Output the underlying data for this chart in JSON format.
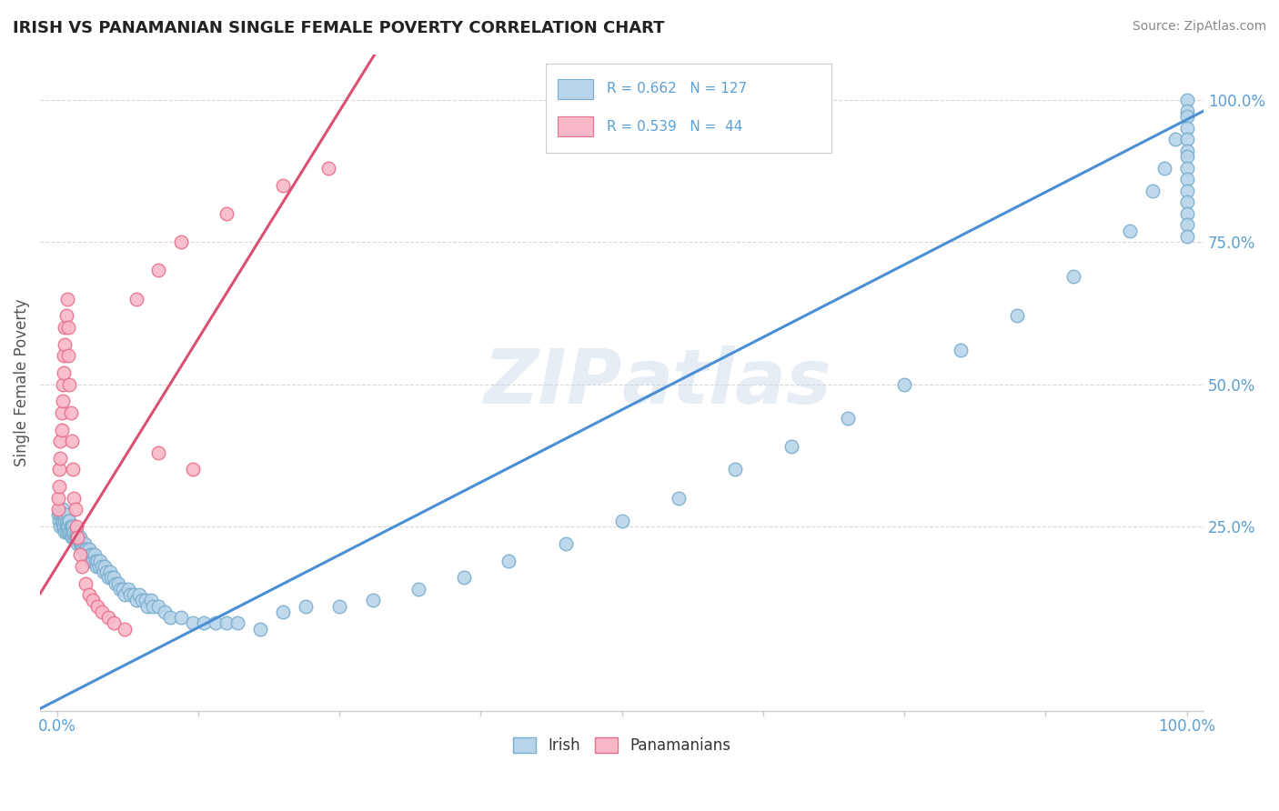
{
  "title": "IRISH VS PANAMANIAN SINGLE FEMALE POVERTY CORRELATION CHART",
  "source": "Source: ZipAtlas.com",
  "ylabel": "Single Female Poverty",
  "watermark_top": "ZIP",
  "watermark_bot": "atlas",
  "legend_irish_R": "R = 0.662",
  "legend_irish_N": "N = 127",
  "legend_pan_R": "R = 0.539",
  "legend_pan_N": "N =  44",
  "irish_color": "#b8d4ea",
  "irish_edge_color": "#7aaece",
  "pan_color": "#f9b8c8",
  "pan_edge_color": "#e8708a",
  "irish_line_color": "#4a8fd4",
  "pan_line_color": "#d95070",
  "background_color": "#ffffff",
  "grid_color": "#d8d8d8",
  "axis_label_color": "#5a9fd4",
  "title_color": "#222222",
  "source_color": "#888888",
  "ylabel_color": "#555555",
  "irish_slope": 1.02,
  "irish_intercept": -0.055,
  "pan_slope": 3.2,
  "pan_intercept": 0.18,
  "pan_line_xmax": 0.32,
  "xlim_min": -0.015,
  "xlim_max": 1.015,
  "ylim_min": -0.075,
  "ylim_max": 1.08,
  "irish_x": [
    0.001,
    0.002,
    0.003,
    0.003,
    0.004,
    0.004,
    0.005,
    0.005,
    0.005,
    0.006,
    0.006,
    0.007,
    0.007,
    0.007,
    0.008,
    0.008,
    0.008,
    0.009,
    0.009,
    0.01,
    0.01,
    0.01,
    0.011,
    0.011,
    0.012,
    0.012,
    0.013,
    0.013,
    0.014,
    0.014,
    0.015,
    0.015,
    0.016,
    0.017,
    0.017,
    0.018,
    0.019,
    0.02,
    0.02,
    0.021,
    0.022,
    0.022,
    0.023,
    0.024,
    0.025,
    0.025,
    0.026,
    0.027,
    0.028,
    0.029,
    0.03,
    0.031,
    0.032,
    0.033,
    0.034,
    0.035,
    0.036,
    0.037,
    0.038,
    0.04,
    0.041,
    0.042,
    0.044,
    0.045,
    0.047,
    0.048,
    0.05,
    0.052,
    0.054,
    0.056,
    0.058,
    0.06,
    0.063,
    0.065,
    0.068,
    0.07,
    0.073,
    0.075,
    0.078,
    0.08,
    0.083,
    0.085,
    0.09,
    0.095,
    0.1,
    0.11,
    0.12,
    0.13,
    0.14,
    0.15,
    0.16,
    0.18,
    0.2,
    0.22,
    0.25,
    0.28,
    0.32,
    0.36,
    0.4,
    0.45,
    0.5,
    0.55,
    0.6,
    0.65,
    0.7,
    0.75,
    0.8,
    0.85,
    0.9,
    0.95,
    0.97,
    0.98,
    0.99,
    1.0,
    1.0,
    1.0,
    1.0,
    1.0,
    1.0,
    1.0,
    1.0,
    1.0,
    1.0,
    1.0,
    1.0,
    1.0,
    1.0
  ],
  "irish_y": [
    0.27,
    0.26,
    0.27,
    0.25,
    0.26,
    0.27,
    0.25,
    0.26,
    0.28,
    0.25,
    0.27,
    0.24,
    0.26,
    0.27,
    0.25,
    0.24,
    0.26,
    0.25,
    0.27,
    0.24,
    0.26,
    0.25,
    0.24,
    0.26,
    0.25,
    0.24,
    0.25,
    0.23,
    0.24,
    0.25,
    0.23,
    0.24,
    0.23,
    0.24,
    0.23,
    0.22,
    0.23,
    0.22,
    0.23,
    0.22,
    0.21,
    0.22,
    0.21,
    0.22,
    0.21,
    0.2,
    0.21,
    0.2,
    0.21,
    0.2,
    0.19,
    0.2,
    0.19,
    0.2,
    0.19,
    0.18,
    0.19,
    0.18,
    0.19,
    0.18,
    0.17,
    0.18,
    0.17,
    0.16,
    0.17,
    0.16,
    0.16,
    0.15,
    0.15,
    0.14,
    0.14,
    0.13,
    0.14,
    0.13,
    0.13,
    0.12,
    0.13,
    0.12,
    0.12,
    0.11,
    0.12,
    0.11,
    0.11,
    0.1,
    0.09,
    0.09,
    0.08,
    0.08,
    0.08,
    0.08,
    0.08,
    0.07,
    0.1,
    0.11,
    0.11,
    0.12,
    0.14,
    0.16,
    0.19,
    0.22,
    0.26,
    0.3,
    0.35,
    0.39,
    0.44,
    0.5,
    0.56,
    0.62,
    0.69,
    0.77,
    0.84,
    0.88,
    0.93,
    1.0,
    0.98,
    0.97,
    0.95,
    0.93,
    0.91,
    0.9,
    0.88,
    0.86,
    0.84,
    0.82,
    0.8,
    0.78,
    0.76
  ],
  "pan_x": [
    0.001,
    0.001,
    0.002,
    0.002,
    0.003,
    0.003,
    0.004,
    0.004,
    0.005,
    0.005,
    0.006,
    0.006,
    0.007,
    0.007,
    0.008,
    0.009,
    0.01,
    0.01,
    0.011,
    0.012,
    0.013,
    0.014,
    0.015,
    0.016,
    0.017,
    0.018,
    0.02,
    0.022,
    0.025,
    0.028,
    0.032,
    0.036,
    0.04,
    0.045,
    0.05,
    0.06,
    0.07,
    0.09,
    0.11,
    0.15,
    0.2,
    0.24,
    0.09,
    0.12
  ],
  "pan_y": [
    0.28,
    0.3,
    0.32,
    0.35,
    0.37,
    0.4,
    0.42,
    0.45,
    0.47,
    0.5,
    0.52,
    0.55,
    0.57,
    0.6,
    0.62,
    0.65,
    0.6,
    0.55,
    0.5,
    0.45,
    0.4,
    0.35,
    0.3,
    0.28,
    0.25,
    0.23,
    0.2,
    0.18,
    0.15,
    0.13,
    0.12,
    0.11,
    0.1,
    0.09,
    0.08,
    0.07,
    0.65,
    0.7,
    0.75,
    0.8,
    0.85,
    0.88,
    0.38,
    0.35
  ]
}
